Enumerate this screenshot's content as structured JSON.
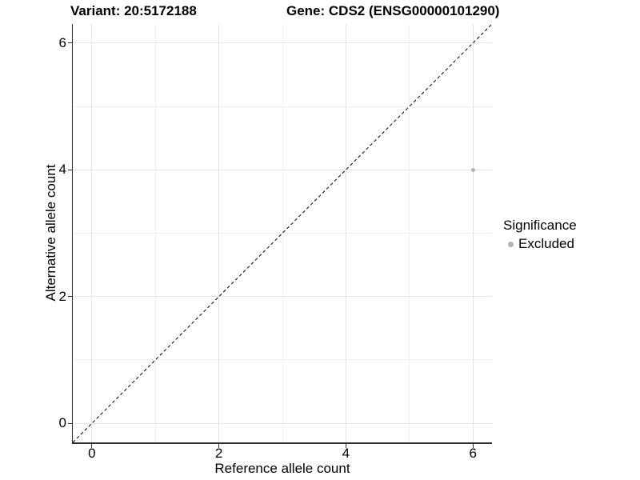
{
  "chart_data": {
    "type": "scatter",
    "titles": {
      "left": "Variant: 20:5172188",
      "right": "Gene: CDS2 (ENSG00000101290)"
    },
    "xlabel": "Reference allele count",
    "ylabel": "Alternative allele count",
    "xlim": [
      -0.3,
      6.3
    ],
    "ylim": [
      -0.3,
      6.3
    ],
    "xticks": [
      0,
      2,
      4,
      6
    ],
    "yticks": [
      0,
      2,
      4,
      6
    ],
    "minor_xticks": [
      1,
      3,
      5
    ],
    "minor_yticks": [
      1,
      3,
      5
    ],
    "grid": true,
    "points": [
      {
        "x": 6,
        "y": 4,
        "series": "Excluded"
      }
    ],
    "reference_line": {
      "type": "identity",
      "style": "dashed",
      "from": [
        -0.3,
        -0.3
      ],
      "to": [
        6.3,
        6.3
      ],
      "color": "#000000"
    },
    "legend": {
      "title": "Significance",
      "position": "right",
      "items": [
        {
          "label": "Excluded",
          "color": "#b4b4b4"
        }
      ]
    },
    "colors": {
      "point": "#b4b4b4",
      "major_grid": "#e4e4e4",
      "minor_grid": "#f0f0f0",
      "axis": "#2f2f2f",
      "text": "#000000",
      "background": "#ffffff"
    }
  }
}
